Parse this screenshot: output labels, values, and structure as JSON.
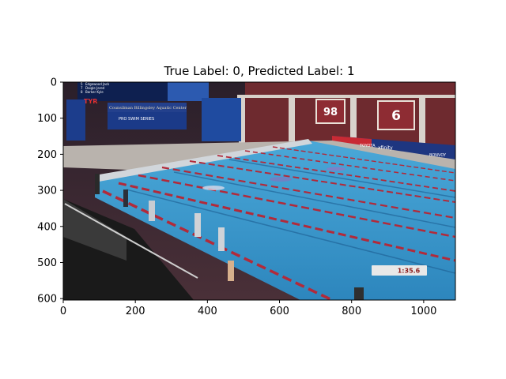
{
  "chart_data": {
    "type": "image",
    "title": "True Label: 0, Predicted Label: 1",
    "xlim": [
      0,
      1088
    ],
    "ylim": [
      604,
      0
    ],
    "x_ticks": [
      0,
      200,
      400,
      600,
      800,
      1000
    ],
    "y_ticks": [
      0,
      100,
      200,
      300,
      400,
      500,
      600
    ],
    "image_content": {
      "description_scene": "indoor swimming pool, racing lanes",
      "scoreboard_rows": [
        {
          "place": "5",
          "name": "Edgewood Jack"
        },
        {
          "place": "7",
          "name": "Daigle Jared"
        },
        {
          "place": "8",
          "name": "Barker Kyle"
        }
      ],
      "banner_text": "Counsilman Billingsley Aquatic Center",
      "series_text": "PRO SWIM SERIES",
      "brand_text": "TYR",
      "board_numbers": [
        "98",
        "6"
      ],
      "sponsor_texts": [
        "TOYOTA",
        "xfinity",
        "BONVOY"
      ],
      "timer_text": "1:35.6"
    }
  }
}
